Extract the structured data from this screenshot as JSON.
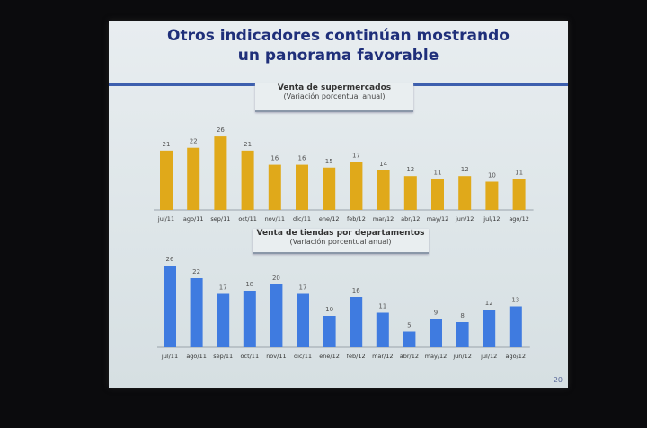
{
  "slide": {
    "title": "Otros indicadores continúan mostrando un panorama favorable",
    "page_number": "20"
  },
  "chart_data": [
    {
      "type": "bar",
      "title": "Venta de supermercados",
      "subtitle": "(Variación porcentual anual)",
      "categories": [
        "jul/11",
        "ago/11",
        "sep/11",
        "oct/11",
        "nov/11",
        "dic/11",
        "ene/12",
        "feb/12",
        "mar/12",
        "abr/12",
        "may/12",
        "jun/12",
        "jul/12",
        "ago/12"
      ],
      "values": [
        21,
        22,
        26,
        21,
        16,
        16,
        15,
        17,
        14,
        12,
        11,
        12,
        10,
        11
      ],
      "color": "#e0a91a",
      "xlabel": "",
      "ylabel": "",
      "ylim": [
        0,
        28
      ],
      "grid": false
    },
    {
      "type": "bar",
      "title": "Venta de tiendas por departamentos",
      "subtitle": "(Variación porcentual anual)",
      "categories": [
        "jul/11",
        "ago/11",
        "sep/11",
        "oct/11",
        "nov/11",
        "dic/11",
        "ene/12",
        "feb/12",
        "mar/12",
        "abr/12",
        "may/12",
        "jun/12",
        "jul/12",
        "ago/12"
      ],
      "values": [
        26,
        22,
        17,
        18,
        20,
        17,
        10,
        16,
        11,
        5,
        9,
        8,
        12,
        13
      ],
      "color": "#3f7be0",
      "xlabel": "",
      "ylabel": "",
      "ylim": [
        0,
        28
      ],
      "grid": false
    }
  ]
}
